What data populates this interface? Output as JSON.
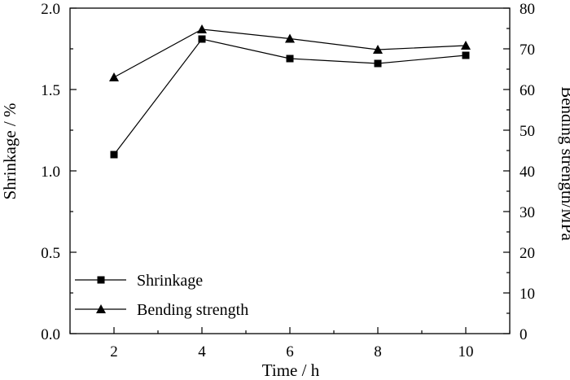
{
  "chart_data": {
    "type": "line",
    "xlabel": "Time / h",
    "ylabel_left": "Shrinkage / %",
    "ylabel_right": "Bending strength/MPa",
    "xlim": [
      1,
      11
    ],
    "ylim_left": [
      0.0,
      2.0
    ],
    "ylim_right": [
      0,
      80
    ],
    "x_ticks": [
      2,
      4,
      6,
      8,
      10
    ],
    "y_ticks_left": [
      "0.0",
      "0.5",
      "1.0",
      "1.5",
      "2.0"
    ],
    "y_ticks_right": [
      "0",
      "10",
      "20",
      "30",
      "40",
      "50",
      "60",
      "70",
      "80"
    ],
    "x": [
      2,
      4,
      6,
      8,
      10
    ],
    "series": [
      {
        "name": "Shrinkage",
        "axis": "left",
        "marker": "square",
        "values": [
          1.1,
          1.81,
          1.69,
          1.66,
          1.71
        ]
      },
      {
        "name": "Bending strength",
        "axis": "right",
        "marker": "triangle",
        "values": [
          63.0,
          74.8,
          72.5,
          69.8,
          70.8
        ]
      }
    ],
    "legend_position": "bottom-left",
    "grid": false
  }
}
